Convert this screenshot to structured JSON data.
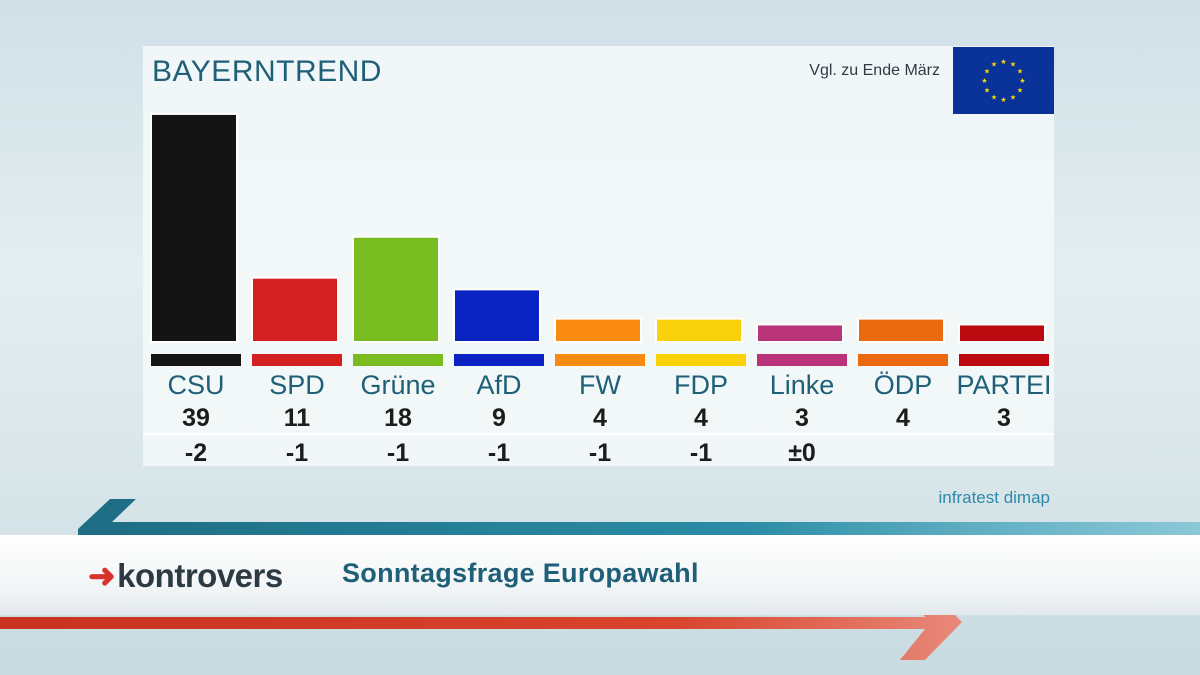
{
  "header": {
    "brand": "BAYERNTREND",
    "comparison_note": "Vgl. zu Ende März",
    "flag": "eu-flag-icon"
  },
  "chart_data": {
    "type": "bar",
    "title": "Sonntagsfrage Europawahl",
    "categories": [
      "CSU",
      "SPD",
      "Grüne",
      "AfD",
      "FW",
      "FDP",
      "Linke",
      "ÖDP",
      "PARTEI"
    ],
    "values": [
      39,
      11,
      18,
      9,
      4,
      4,
      3,
      4,
      3
    ],
    "change_labels": [
      "-2",
      "-1",
      "-1",
      "-1",
      "-1",
      "-1",
      "±0",
      "",
      ""
    ],
    "colors": [
      "#141414",
      "#d42020",
      "#79bc1f",
      "#0a24c4",
      "#f98b12",
      "#fad20c",
      "#b83377",
      "#ea6a0d",
      "#bb0a10"
    ],
    "ylim": [
      0,
      40
    ],
    "xlabel": "",
    "ylabel": ""
  },
  "footer": {
    "source": "infratest dimap",
    "logo_text": "kontrovers",
    "subtitle": "Sonntagsfrage Europawahl"
  }
}
